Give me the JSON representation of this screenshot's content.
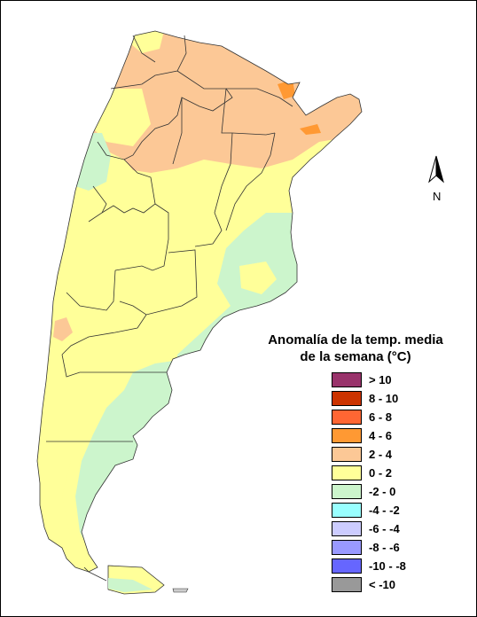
{
  "legend": {
    "title_line1": "Anomalía de la temp. media",
    "title_line2": "de la semana (°C)",
    "items": [
      {
        "label": "> 10",
        "color": "#99336b"
      },
      {
        "label": "8 - 10",
        "color": "#cc3300"
      },
      {
        "label": "6 - 8",
        "color": "#ff6633"
      },
      {
        "label": "4 - 6",
        "color": "#ff9933"
      },
      {
        "label": "2 - 4",
        "color": "#fcc896"
      },
      {
        "label": "0 - 2",
        "color": "#ffff99"
      },
      {
        "label": "-2 - 0",
        "color": "#ccf5cc"
      },
      {
        "label": "-4 - -2",
        "color": "#99ffff"
      },
      {
        "label": "-6 - -4",
        "color": "#ccccff"
      },
      {
        "label": "-8 - -6",
        "color": "#9999ff"
      },
      {
        "label": "-10 - -8",
        "color": "#6666ff"
      },
      {
        "label": "< -10",
        "color": "#999999"
      }
    ]
  },
  "north_arrow": {
    "label": "N",
    "icon": "north-arrow-icon"
  }
}
